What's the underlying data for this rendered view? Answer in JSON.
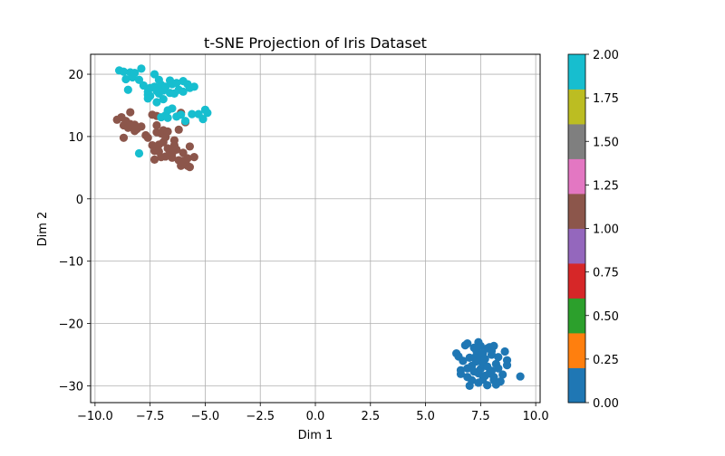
{
  "chart_data": {
    "type": "scatter",
    "title": "t-SNE Projection of Iris Dataset",
    "xlabel": "Dim 1",
    "ylabel": "Dim 2",
    "xlim": [
      -10.2,
      10.2
    ],
    "ylim": [
      -32.7,
      23.2
    ],
    "xticks": [
      -10.0,
      -7.5,
      -5.0,
      -2.5,
      0.0,
      2.5,
      5.0,
      7.5,
      10.0
    ],
    "xtick_labels": [
      "−10.0",
      "−7.5",
      "−5.0",
      "−2.5",
      "0.0",
      "2.5",
      "5.0",
      "7.5",
      "10.0"
    ],
    "yticks": [
      -30,
      -20,
      -10,
      0,
      10,
      20
    ],
    "ytick_labels": [
      "−30",
      "−20",
      "−10",
      "0",
      "10",
      "20"
    ],
    "grid": true,
    "colorbar": {
      "min": 0.0,
      "max": 2.0,
      "ticks": [
        0.0,
        0.25,
        0.5,
        0.75,
        1.0,
        1.25,
        1.5,
        1.75,
        2.0
      ],
      "tick_labels": [
        "0.00",
        "0.25",
        "0.50",
        "0.75",
        "1.00",
        "1.25",
        "1.50",
        "1.75",
        "2.00"
      ],
      "colors": [
        "#1f77b4",
        "#ff7f0e",
        "#2ca02c",
        "#d62728",
        "#9467bd",
        "#8c564b",
        "#e377c2",
        "#7f7f7f",
        "#bcbd22",
        "#17becf"
      ]
    },
    "series": [
      {
        "value": 0,
        "color": "#1f77b4",
        "points": [
          [
            6.4,
            -24.8
          ],
          [
            6.5,
            -25.3
          ],
          [
            6.6,
            -27.5
          ],
          [
            6.6,
            -28.1
          ],
          [
            6.7,
            -26.0
          ],
          [
            6.8,
            -23.5
          ],
          [
            6.9,
            -23.2
          ],
          [
            6.9,
            -27.2
          ],
          [
            6.9,
            -28.6
          ],
          [
            7.0,
            -30.0
          ],
          [
            7.0,
            -25.5
          ],
          [
            7.1,
            -26.8
          ],
          [
            7.1,
            -29.1
          ],
          [
            7.2,
            -23.9
          ],
          [
            7.2,
            -27.7
          ],
          [
            7.3,
            -25.2
          ],
          [
            7.3,
            -24.3
          ],
          [
            7.3,
            -26.1
          ],
          [
            7.4,
            -23.0
          ],
          [
            7.4,
            -29.5
          ],
          [
            7.4,
            -28.0
          ],
          [
            7.5,
            -25.6
          ],
          [
            7.5,
            -23.6
          ],
          [
            7.5,
            -27.3
          ],
          [
            7.6,
            -26.6
          ],
          [
            7.6,
            -24.8
          ],
          [
            7.6,
            -29.0
          ],
          [
            7.7,
            -28.4
          ],
          [
            7.7,
            -25.7
          ],
          [
            7.8,
            -24.0
          ],
          [
            7.8,
            -26.9
          ],
          [
            7.8,
            -29.9
          ],
          [
            7.9,
            -23.8
          ],
          [
            7.9,
            -28.0
          ],
          [
            8.0,
            -25.0
          ],
          [
            8.0,
            -24.4
          ],
          [
            8.0,
            -27.6
          ],
          [
            8.1,
            -29.1
          ],
          [
            8.1,
            -23.6
          ],
          [
            8.1,
            -28.6
          ],
          [
            8.2,
            -26.5
          ],
          [
            8.2,
            -29.8
          ],
          [
            8.3,
            -25.4
          ],
          [
            8.3,
            -27.2
          ],
          [
            8.4,
            -29.3
          ],
          [
            8.5,
            -28.2
          ],
          [
            8.6,
            -24.5
          ],
          [
            8.7,
            -26.7
          ],
          [
            8.7,
            -25.9
          ],
          [
            9.3,
            -28.5
          ]
        ]
      },
      {
        "value": 1,
        "color": "#8c564b",
        "points": [
          [
            -9.0,
            12.7
          ],
          [
            -8.8,
            13.1
          ],
          [
            -8.7,
            11.8
          ],
          [
            -8.7,
            9.8
          ],
          [
            -8.6,
            12.5
          ],
          [
            -8.5,
            11.4
          ],
          [
            -8.4,
            12.0
          ],
          [
            -8.4,
            13.9
          ],
          [
            -8.2,
            11.9
          ],
          [
            -8.2,
            10.9
          ],
          [
            -8.1,
            11.2
          ],
          [
            -7.9,
            11.6
          ],
          [
            -7.7,
            10.2
          ],
          [
            -7.6,
            9.8
          ],
          [
            -7.4,
            13.5
          ],
          [
            -7.4,
            8.6
          ],
          [
            -7.3,
            7.7
          ],
          [
            -7.3,
            6.3
          ],
          [
            -7.2,
            11.8
          ],
          [
            -7.2,
            10.7
          ],
          [
            -7.2,
            13.3
          ],
          [
            -7.1,
            8.7
          ],
          [
            -7.1,
            7.6
          ],
          [
            -7.0,
            10.5
          ],
          [
            -7.0,
            6.7
          ],
          [
            -6.9,
            9.1
          ],
          [
            -6.9,
            11.0
          ],
          [
            -6.8,
            6.8
          ],
          [
            -6.7,
            8.1
          ],
          [
            -6.7,
            10.8
          ],
          [
            -6.6,
            7.6
          ],
          [
            -6.5,
            6.6
          ],
          [
            -6.5,
            7.3
          ],
          [
            -6.4,
            9.4
          ],
          [
            -6.4,
            8.6
          ],
          [
            -6.3,
            7.9
          ],
          [
            -6.2,
            6.2
          ],
          [
            -6.2,
            11.1
          ],
          [
            -6.1,
            5.3
          ],
          [
            -6.1,
            13.8
          ],
          [
            -6.0,
            7.4
          ],
          [
            -6.0,
            6.1
          ],
          [
            -5.9,
            12.3
          ],
          [
            -5.8,
            5.3
          ],
          [
            -5.8,
            6.5
          ],
          [
            -5.7,
            8.4
          ],
          [
            -5.7,
            5.1
          ],
          [
            -5.5,
            6.7
          ],
          [
            -6.5,
            8.0
          ],
          [
            -6.8,
            9.9
          ]
        ]
      },
      {
        "value": 2,
        "color": "#17becf",
        "points": [
          [
            -8.9,
            20.6
          ],
          [
            -8.7,
            20.4
          ],
          [
            -8.6,
            19.2
          ],
          [
            -8.5,
            17.5
          ],
          [
            -8.4,
            20.3
          ],
          [
            -8.2,
            20.2
          ],
          [
            -8.3,
            19.5
          ],
          [
            -8.0,
            19.1
          ],
          [
            -7.9,
            20.9
          ],
          [
            -7.8,
            18.2
          ],
          [
            -7.6,
            16.7
          ],
          [
            -7.6,
            17.2
          ],
          [
            -7.5,
            16.5
          ],
          [
            -7.5,
            17.8
          ],
          [
            -7.3,
            20.0
          ],
          [
            -7.3,
            18.0
          ],
          [
            -7.2,
            17.3
          ],
          [
            -7.2,
            15.5
          ],
          [
            -7.1,
            19.1
          ],
          [
            -7.1,
            16.9
          ],
          [
            -7.0,
            18.3
          ],
          [
            -7.0,
            13.1
          ],
          [
            -6.9,
            17.4
          ],
          [
            -6.9,
            16.0
          ],
          [
            -6.8,
            18.0
          ],
          [
            -6.8,
            13.4
          ],
          [
            -6.7,
            14.2
          ],
          [
            -6.6,
            17.0
          ],
          [
            -6.6,
            19.0
          ],
          [
            -6.5,
            18.4
          ],
          [
            -6.5,
            14.5
          ],
          [
            -6.4,
            16.9
          ],
          [
            -6.3,
            13.2
          ],
          [
            -6.2,
            17.5
          ],
          [
            -6.1,
            13.5
          ],
          [
            -6.0,
            18.9
          ],
          [
            -6.0,
            17.2
          ],
          [
            -5.9,
            12.5
          ],
          [
            -5.8,
            18.4
          ],
          [
            -5.7,
            17.8
          ],
          [
            -5.6,
            13.6
          ],
          [
            -5.5,
            18.0
          ],
          [
            -5.3,
            13.6
          ],
          [
            -5.1,
            12.8
          ],
          [
            -5.0,
            14.3
          ],
          [
            -4.9,
            13.8
          ],
          [
            -6.7,
            13.0
          ],
          [
            -8.0,
            7.3
          ],
          [
            -7.6,
            16.1
          ],
          [
            -6.3,
            18.6
          ]
        ]
      }
    ]
  }
}
